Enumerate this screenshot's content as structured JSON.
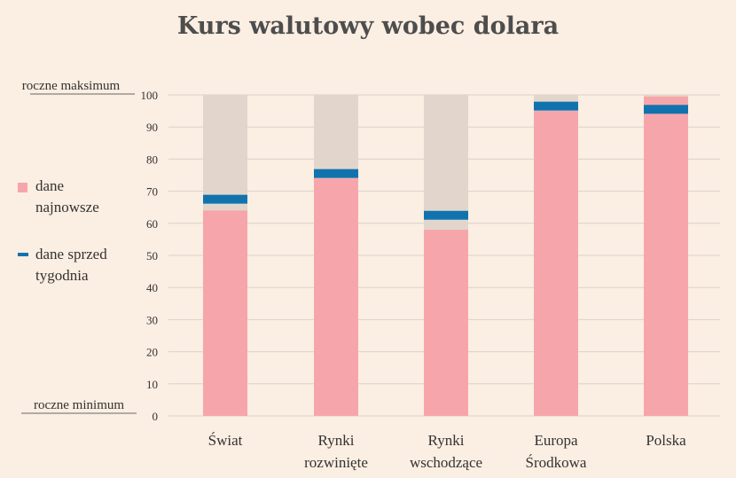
{
  "chart_data": {
    "type": "bar",
    "title": "Kurs walutowy wobec dolara",
    "ylim": [
      0,
      100
    ],
    "yticks": [
      "0",
      "10",
      "20",
      "30",
      "40",
      "50",
      "60",
      "70",
      "80",
      "90",
      "100"
    ],
    "ylabel_top": "roczne maksimum",
    "ylabel_bottom": "roczne minimum",
    "categories": [
      [
        "Świat"
      ],
      [
        "Rynki",
        "rozwinięte"
      ],
      [
        "Rynki",
        "wschodzące"
      ],
      [
        "Europa",
        "Środkowa"
      ],
      [
        "Polska"
      ]
    ],
    "series": [
      {
        "name": "dane najnowsze",
        "values": [
          64,
          74,
          58,
          95,
          99.5
        ]
      },
      {
        "name": "dane sprzed tygodnia",
        "values": [
          67.5,
          75.5,
          62.5,
          96.5,
          95.5
        ]
      }
    ],
    "colors": {
      "range": "#e2d6cc",
      "latest": "#f6a6ab",
      "previous": "#1173ae",
      "grid": "#d9d2cc",
      "axis_text": "#333333"
    },
    "grid": true,
    "legend": {
      "placement": "left",
      "latest_lines": [
        "dane",
        "najnowsze"
      ],
      "previous_lines": [
        "dane sprzed",
        "tygodnia"
      ]
    }
  }
}
